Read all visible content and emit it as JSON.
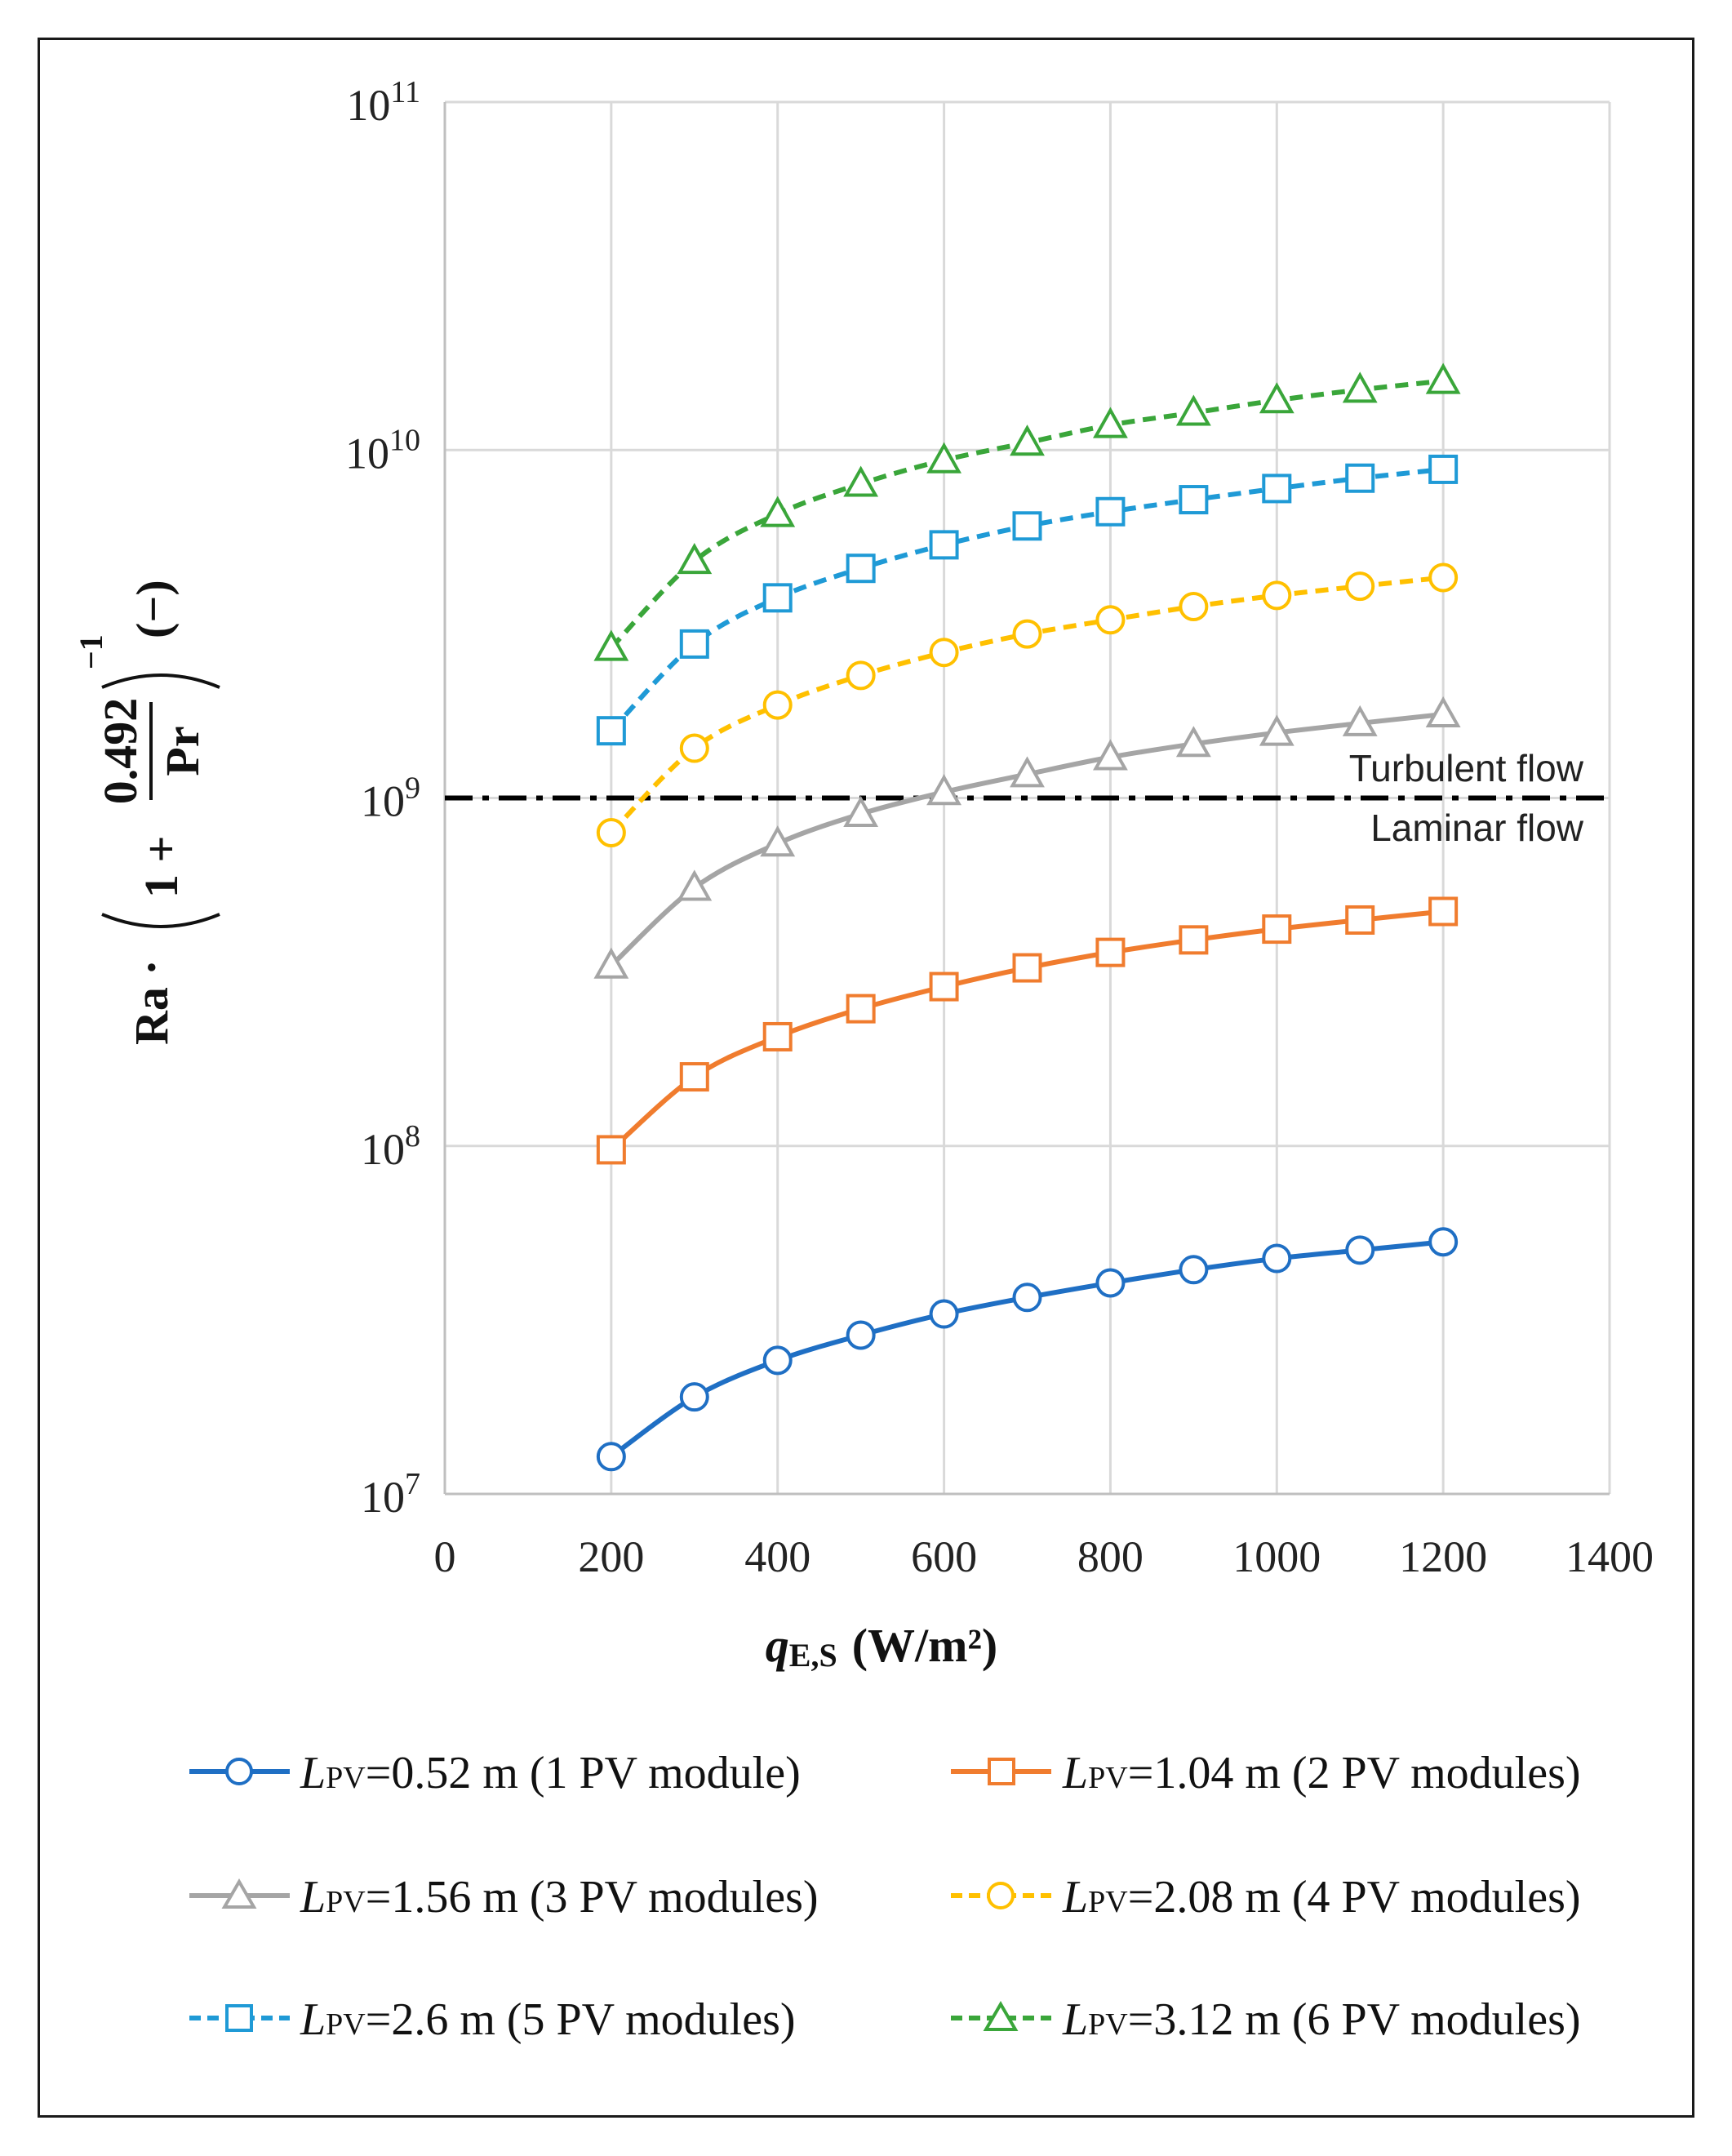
{
  "chart_data": {
    "type": "line",
    "yscale": "log",
    "xlabel": {
      "main": "q",
      "sub": "E,S",
      "unit": "(W/m²)"
    },
    "ylabel": {
      "prefix": "Ra ·",
      "fraction_numerator": "0.492",
      "fraction_denominator": "Pr",
      "one_plus": "1 +",
      "exponent": "−1",
      "unit": "(−)"
    },
    "xlim": [
      0,
      1400
    ],
    "ylim": [
      10000000,
      100000000000
    ],
    "x_ticks": [
      0,
      200,
      400,
      600,
      800,
      1000,
      1200,
      1400
    ],
    "y_ticks": [
      {
        "value": 10000000,
        "base": "10",
        "exp": "7"
      },
      {
        "value": 100000000,
        "base": "10",
        "exp": "8"
      },
      {
        "value": 1000000000,
        "base": "10",
        "exp": "9"
      },
      {
        "value": 10000000000,
        "base": "10",
        "exp": "10"
      },
      {
        "value": 100000000000,
        "base": "10",
        "exp": "11"
      }
    ],
    "grid": true,
    "reference_line": {
      "value": 1000000000,
      "label_above": "Turbulent flow",
      "label_below": "Laminar flow",
      "style": "dash-dot",
      "color": "#000000"
    },
    "x": [
      200,
      300,
      400,
      500,
      600,
      700,
      800,
      900,
      1000,
      1100,
      1200
    ],
    "series": [
      {
        "name": "L_PV=0.52 m (1 PV module)",
        "legend_L": "L",
        "legend_sub": "PV",
        "legend_rest": "=0.52 m (1 PV module)",
        "color": "#1f6fc4",
        "marker": "circle",
        "dash": false,
        "values": [
          12800000,
          19000000,
          24200000,
          28600000,
          32900000,
          36700000,
          40400000,
          44100000,
          47500000,
          50200000,
          53000000
        ]
      },
      {
        "name": "L_PV=1.04 m (2 PV modules)",
        "legend_L": "L",
        "legend_sub": "PV",
        "legend_rest": "=1.04 m (2 PV modules)",
        "color": "#f07c2e",
        "marker": "square",
        "dash": false,
        "values": [
          97500000,
          158000000,
          206000000,
          248000000,
          287000000,
          325000000,
          360000000,
          391000000,
          420000000,
          446000000,
          472000000
        ]
      },
      {
        "name": "L_PV=1.56 m (3 PV modules)",
        "legend_L": "L",
        "legend_sub": "PV",
        "legend_rest": "=1.56 m (3 PV modules)",
        "color": "#a5a5a5",
        "marker": "triangle",
        "dash": false,
        "values": [
          330000000,
          552000000,
          740000000,
          900000000,
          1040000000,
          1170000000,
          1310000000,
          1430000000,
          1540000000,
          1640000000,
          1740000000
        ]
      },
      {
        "name": "L_PV=2.08 m (4 PV modules)",
        "legend_L": "L",
        "legend_sub": "PV",
        "legend_rest": "=2.08 m (4 PV modules)",
        "color": "#ffc000",
        "marker": "circle",
        "dash": true,
        "values": [
          795000000,
          1390000000,
          1850000000,
          2250000000,
          2620000000,
          2960000000,
          3250000000,
          3550000000,
          3820000000,
          4060000000,
          4300000000
        ]
      },
      {
        "name": "L_PV=2.6 m (5 PV modules)",
        "legend_L": "L",
        "legend_sub": "PV",
        "legend_rest": "=2.6 m (5 PV modules)",
        "color": "#1f9ad6",
        "marker": "square",
        "dash": true,
        "values": [
          1560000000,
          2770000000,
          3760000000,
          4570000000,
          5340000000,
          6050000000,
          6650000000,
          7200000000,
          7750000000,
          8300000000,
          8800000000
        ]
      },
      {
        "name": "L_PV=3.12 m (6 PV modules)",
        "legend_L": "L",
        "legend_sub": "PV",
        "legend_rest": "=3.12 m (6 PV modules)",
        "color": "#3aa63a",
        "marker": "triangle",
        "dash": true,
        "values": [
          2700000000,
          4800000000,
          6550000000,
          8000000000,
          9350000000,
          10500000000,
          11800000000,
          12800000000,
          13900000000,
          14900000000,
          15800000000
        ]
      }
    ]
  }
}
